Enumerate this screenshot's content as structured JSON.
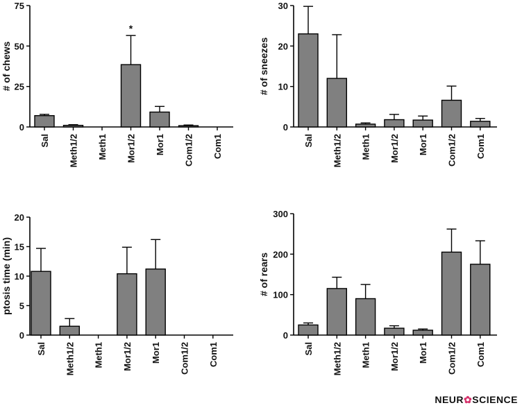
{
  "brand": {
    "prefix": "NEUR",
    "mark": "✿",
    "suffix": "SCIENCE",
    "mark_color": "#d6336c"
  },
  "style": {
    "bar_fill": "#808080",
    "axis_color": "#000000"
  },
  "chart_data": [
    {
      "type": "bar",
      "ylabel": "# of chews",
      "categories": [
        "Sal",
        "Meth1/2",
        "Meth1",
        "Mor1/2",
        "Mor1",
        "Com1/2",
        "Com1"
      ],
      "values": [
        7,
        1,
        0,
        38.5,
        9.2,
        0.8,
        0
      ],
      "errors": [
        0.8,
        0.4,
        0,
        18,
        3.5,
        0.4,
        0
      ],
      "ylim": [
        0,
        75
      ],
      "yticks": [
        0,
        25,
        50,
        75
      ],
      "annotations": [
        {
          "category": "Mor1/2",
          "text": "*"
        }
      ]
    },
    {
      "type": "bar",
      "ylabel": "# of sneezes",
      "categories": [
        "Sal",
        "Meth1/2",
        "Meth1",
        "Mor1/2",
        "Mor1",
        "Com1/2",
        "Com1"
      ],
      "values": [
        23,
        12,
        0.7,
        1.8,
        1.7,
        6.6,
        1.4
      ],
      "errors": [
        6.8,
        10.8,
        0.3,
        1.3,
        1.0,
        3.5,
        0.7
      ],
      "ylim": [
        0,
        30
      ],
      "yticks": [
        0,
        10,
        20,
        30
      ],
      "annotations": []
    },
    {
      "type": "bar",
      "ylabel": "ptosis time (min)",
      "categories": [
        "Sal",
        "Meth1/2",
        "Meth1",
        "Mor1/2",
        "Mor1",
        "Com1/2",
        "Com1"
      ],
      "values": [
        10.8,
        1.5,
        0,
        10.4,
        11.2,
        0,
        0
      ],
      "errors": [
        3.9,
        1.3,
        0,
        4.5,
        5.0,
        0,
        0
      ],
      "ylim": [
        0,
        20
      ],
      "yticks": [
        0,
        5,
        10,
        15,
        20
      ],
      "annotations": []
    },
    {
      "type": "bar",
      "ylabel": "# of rears",
      "categories": [
        "Sal",
        "Meth1/2",
        "Meth1",
        "Mor1/2",
        "Mor1",
        "Com1/2",
        "Com1"
      ],
      "values": [
        25,
        115,
        90,
        17,
        12,
        205,
        175
      ],
      "errors": [
        5,
        28,
        35,
        6,
        3,
        57,
        58
      ],
      "ylim": [
        0,
        300
      ],
      "yticks": [
        0,
        100,
        200,
        300
      ],
      "annotations": []
    }
  ]
}
